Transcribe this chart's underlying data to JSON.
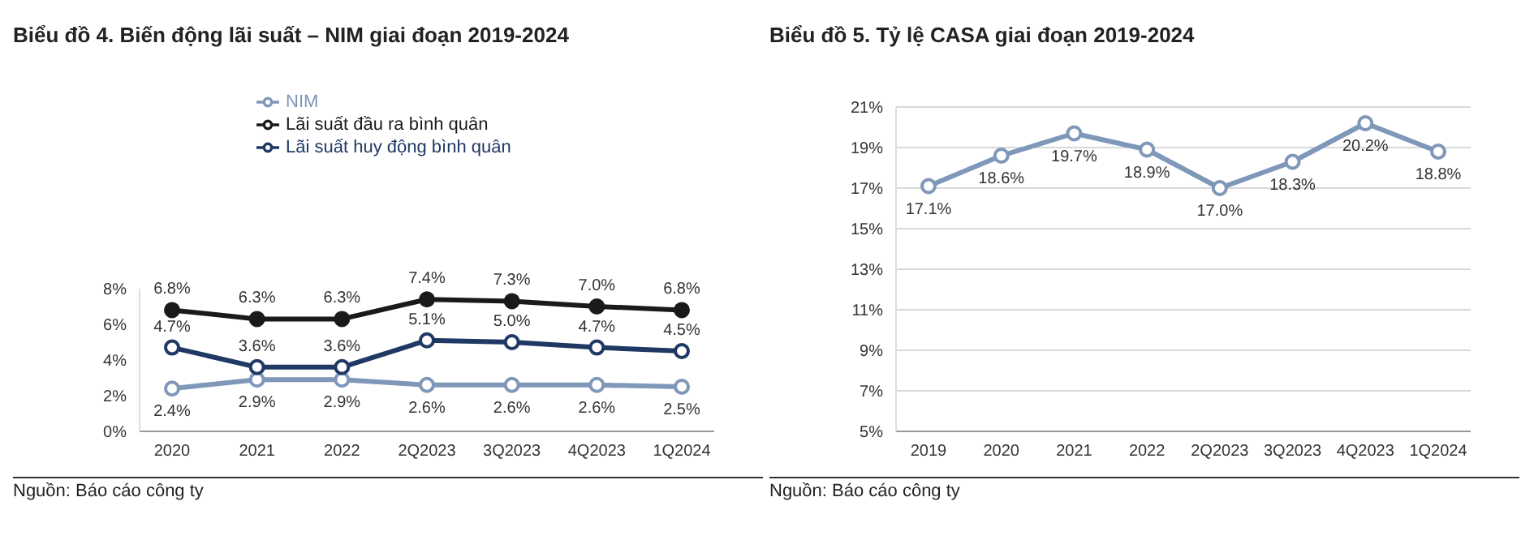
{
  "chart_data": [
    {
      "type": "line",
      "title": "Biểu đồ 4. Biến động lãi suất – NIM giai đoạn 2019-2024",
      "categories": [
        "2020",
        "2021",
        "2022",
        "2Q2023",
        "3Q2023",
        "4Q2023",
        "1Q2024"
      ],
      "series": [
        {
          "name": "NIM",
          "color": "#7f97b9",
          "values": [
            2.4,
            2.9,
            2.9,
            2.6,
            2.6,
            2.6,
            2.5
          ],
          "value_labels": [
            "2.4%",
            "2.9%",
            "2.9%",
            "2.6%",
            "2.6%",
            "2.6%",
            "2.5%"
          ]
        },
        {
          "name": "Lãi suất đầu ra bình quân",
          "color": "#1a1a1a",
          "values": [
            6.8,
            6.3,
            6.3,
            7.4,
            7.3,
            7.0,
            6.8
          ],
          "value_labels": [
            "6.8%",
            "6.3%",
            "6.3%",
            "7.4%",
            "7.3%",
            "7.0%",
            "6.8%"
          ]
        },
        {
          "name": "Lãi suất huy động bình quân",
          "color": "#1f3864",
          "values": [
            4.7,
            3.6,
            3.6,
            5.1,
            5.0,
            4.7,
            4.5
          ],
          "value_labels": [
            "4.7%",
            "3.6%",
            "3.6%",
            "5.1%",
            "5.0%",
            "4.7%",
            "4.5%"
          ]
        }
      ],
      "ylim": [
        0,
        8
      ],
      "yticks": [
        {
          "value": 0,
          "label": "0%"
        },
        {
          "value": 2,
          "label": "2%"
        },
        {
          "value": 4,
          "label": "4%"
        },
        {
          "value": 6,
          "label": "6%"
        },
        {
          "value": 8,
          "label": "8%"
        }
      ],
      "legend": "top",
      "marker": "circle",
      "annotations": [
        "Nguồn: Báo cáo công ty"
      ]
    },
    {
      "type": "line",
      "title": "Biểu đồ 5. Tỷ lệ CASA giai đoạn 2019-2024",
      "categories": [
        "2019",
        "2020",
        "2021",
        "2022",
        "2Q2023",
        "3Q2023",
        "4Q2023",
        "1Q2024"
      ],
      "series": [
        {
          "color": "#7f97b9",
          "values": [
            17.1,
            18.6,
            19.7,
            18.9,
            17.0,
            18.3,
            20.2,
            18.8
          ],
          "value_labels": [
            "17.1%",
            "18.6%",
            "19.7%",
            "18.9%",
            "17.0%",
            "18.3%",
            "20.2%",
            "18.8%"
          ]
        }
      ],
      "ylim": [
        5,
        21
      ],
      "yticks": [
        {
          "value": 5,
          "label": "5%"
        },
        {
          "value": 7,
          "label": "7%"
        },
        {
          "value": 9,
          "label": "9%"
        },
        {
          "value": 11,
          "label": "11%"
        },
        {
          "value": 13,
          "label": "13%"
        },
        {
          "value": 15,
          "label": "15%"
        },
        {
          "value": 17,
          "label": "17%"
        },
        {
          "value": 19,
          "label": "19%"
        },
        {
          "value": 21,
          "label": "21%"
        }
      ],
      "grid": "y",
      "legend": false,
      "marker": "circle",
      "annotations": [
        "Nguồn: Báo cáo công ty"
      ]
    }
  ]
}
